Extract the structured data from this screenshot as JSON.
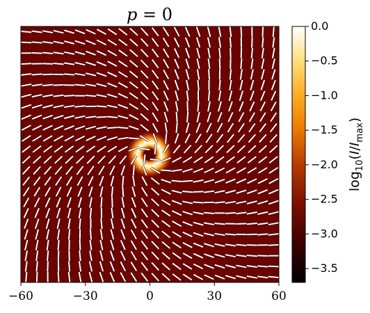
{
  "chart_data": {
    "type": "heatmap",
    "title": "p = 0",
    "title_parts": {
      "var": "p",
      "rest": " = 0"
    },
    "x_ticks": [
      -60,
      -30,
      0,
      30,
      60
    ],
    "x_tick_labels": [
      "−60",
      "−30",
      "0",
      "30",
      "60"
    ],
    "xlim": [
      -60,
      60
    ],
    "ylim": [
      -60,
      60
    ],
    "colorbar": {
      "label": "log10(I/Imax)",
      "label_parts": {
        "pre": "log",
        "sub1": "10",
        "open": "(",
        "var": "I",
        "slash": "/",
        "var2": "I",
        "sub2": "max",
        "close": ")"
      },
      "range": [
        -3.7,
        0.0
      ],
      "ticks": [
        0.0,
        -0.5,
        -1.0,
        -1.5,
        -2.0,
        -2.5,
        -3.0,
        -3.5
      ],
      "tick_labels": [
        "0.0",
        "−0.5",
        "−1.0",
        "−1.5",
        "−2.0",
        "−2.5",
        "−3.0",
        "−3.5"
      ],
      "colormap": "afmhot"
    },
    "background_level": -2.75,
    "ring": {
      "center": [
        0,
        0
      ],
      "radius": 6,
      "shadow_radius": 3,
      "peak_level": 0.0
    },
    "polarization_ticks": {
      "grid_n": 24,
      "spacing": 5,
      "pattern": "spiral",
      "spiral_angle_deg": 40
    },
    "colors": {
      "tick": "#ffffff",
      "frame": "#000000"
    }
  }
}
